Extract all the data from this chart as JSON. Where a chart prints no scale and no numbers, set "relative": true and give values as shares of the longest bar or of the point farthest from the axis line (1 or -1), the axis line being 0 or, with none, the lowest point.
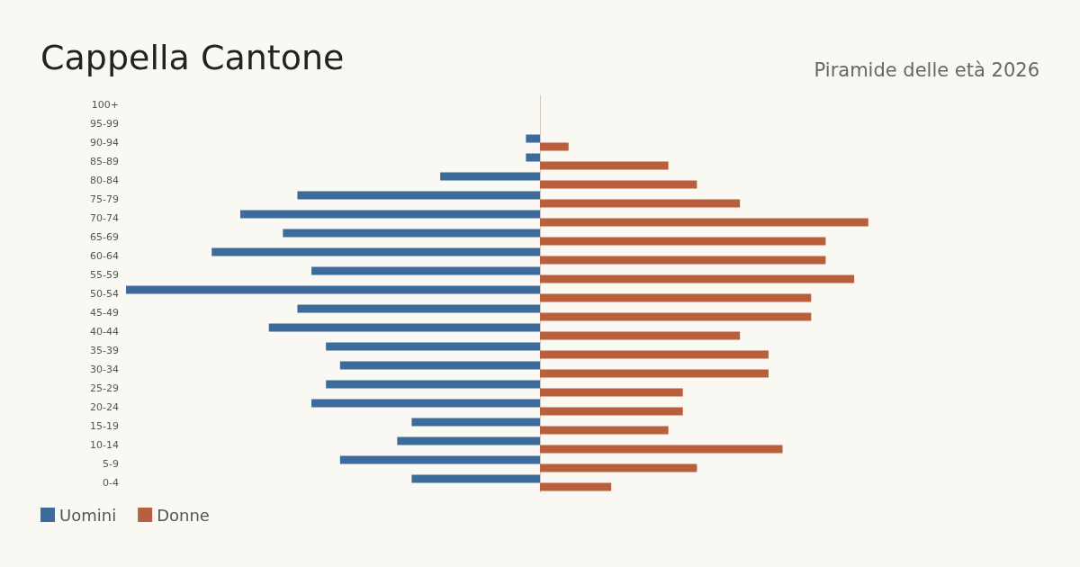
{
  "chart_data": {
    "type": "bar",
    "orientation": "horizontal",
    "relative": true,
    "title": "Cappella Cantone",
    "subtitle": "Piramide delle età 2026",
    "categories": [
      "100+",
      "95-99",
      "90-94",
      "85-89",
      "80-84",
      "75-79",
      "70-74",
      "65-69",
      "60-64",
      "55-59",
      "50-54",
      "45-49",
      "40-44",
      "35-39",
      "30-34",
      "25-29",
      "20-24",
      "15-19",
      "10-14",
      "5-9",
      "0-4"
    ],
    "series": [
      {
        "name": "Uomini",
        "color": "#3d6b9c",
        "values": [
          0,
          0,
          -0.034,
          -0.034,
          -0.241,
          -0.586,
          -0.724,
          -0.621,
          -0.793,
          -0.552,
          -1,
          -0.586,
          -0.655,
          -0.517,
          -0.483,
          -0.517,
          -0.552,
          -0.31,
          -0.345,
          -0.483,
          -0.31
        ]
      },
      {
        "name": "Donne",
        "color": "#b95f3e",
        "values": [
          0,
          0,
          0.069,
          0.31,
          0.379,
          0.483,
          0.793,
          0.69,
          0.69,
          0.759,
          0.655,
          0.655,
          0.483,
          0.552,
          0.552,
          0.345,
          0.345,
          0.31,
          0.586,
          0.379,
          0.172
        ]
      }
    ],
    "legend": "bottom left"
  }
}
